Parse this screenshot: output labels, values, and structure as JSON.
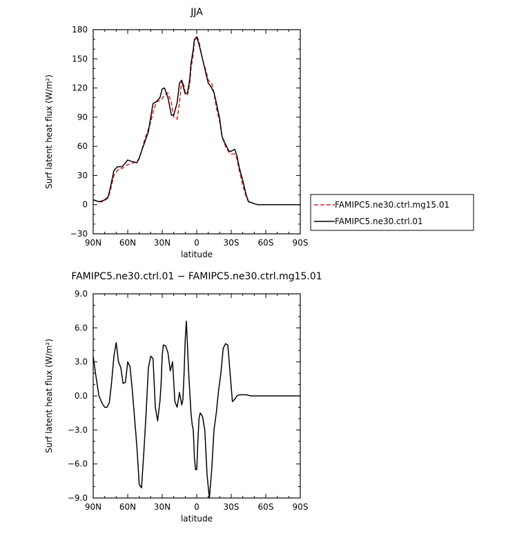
{
  "colors": {
    "ctrl": "#000000",
    "mg15": "#e41a1c"
  },
  "legend": {
    "entries": [
      {
        "label": "FAMIPC5.ne30.ctrl.mg15.01",
        "color": "#e41a1c",
        "dash": true
      },
      {
        "label": "FAMIPC5.ne30.ctrl.01",
        "color": "#000000",
        "dash": false
      }
    ]
  },
  "chart_data": [
    {
      "type": "line",
      "title": "JJA",
      "xlabel": "latitude",
      "ylabel": "Surf latent heat flux (W/m²)",
      "xlim": [
        -90,
        90
      ],
      "ylim": [
        -30,
        180
      ],
      "xticks": [
        -90,
        -60,
        -30,
        0,
        30,
        60,
        90
      ],
      "xtick_labels": [
        "90N",
        "60N",
        "30N",
        "0",
        "30S",
        "60S",
        "90S"
      ],
      "yticks": [
        -30,
        0,
        30,
        60,
        90,
        120,
        150,
        180
      ],
      "ytick_labels": [
        "−30",
        "0",
        "30",
        "60",
        "90",
        "120",
        "150",
        "180"
      ],
      "grid": false,
      "legend_placement": "outside-right",
      "series": [
        {
          "name": "FAMIPC5.ne30.ctrl.mg15.01",
          "color": "#e41a1c",
          "dash": true,
          "x": [
            -90,
            -85,
            -82,
            -80,
            -77,
            -75,
            -72,
            -69,
            -67,
            -65,
            -62,
            -60,
            -58,
            -55,
            -52,
            -50,
            -48,
            -45,
            -42,
            -40,
            -38,
            -35,
            -32,
            -30,
            -28,
            -25,
            -22,
            -20,
            -17,
            -15,
            -13,
            -11,
            -10,
            -8,
            -6,
            -5,
            -3,
            -2,
            0,
            2,
            4,
            6,
            8,
            10,
            12,
            13,
            15,
            17,
            20,
            22,
            25,
            28,
            30,
            33,
            35,
            37,
            40,
            43,
            45,
            48,
            50,
            53,
            55,
            58,
            60,
            62,
            65,
            67,
            70,
            73,
            75,
            78,
            80,
            83,
            85,
            90
          ],
          "y": [
            5,
            3,
            3,
            4,
            7,
            15,
            30,
            35,
            37,
            37,
            40,
            41,
            42,
            43,
            45,
            47,
            55,
            68,
            78,
            85,
            95,
            106,
            107,
            109,
            113,
            115,
            105,
            90,
            88,
            105,
            128,
            122,
            115,
            113,
            125,
            140,
            155,
            168,
            174,
            168,
            155,
            145,
            138,
            128,
            126,
            125,
            115,
            100,
            85,
            70,
            60,
            54,
            52,
            52,
            47,
            35,
            20,
            8,
            3,
            2,
            1,
            0,
            0,
            0,
            0,
            0,
            0,
            0,
            0,
            0,
            0,
            0,
            0,
            0,
            0,
            0
          ]
        },
        {
          "name": "FAMIPC5.ne30.ctrl.01",
          "color": "#000000",
          "dash": false,
          "x": [
            -90,
            -85,
            -82,
            -80,
            -77,
            -75,
            -72,
            -69,
            -67,
            -65,
            -62,
            -60,
            -58,
            -55,
            -52,
            -50,
            -48,
            -45,
            -42,
            -40,
            -38,
            -35,
            -32,
            -30,
            -28,
            -25,
            -22,
            -20,
            -17,
            -15,
            -13,
            -11,
            -10,
            -8,
            -6,
            -5,
            -3,
            -2,
            0,
            2,
            4,
            6,
            8,
            10,
            12,
            13,
            15,
            17,
            20,
            22,
            25,
            28,
            30,
            33,
            35,
            37,
            40,
            43,
            45,
            48,
            50,
            53,
            55,
            58,
            60,
            62,
            65,
            67,
            70,
            73,
            75,
            78,
            80,
            83,
            85,
            90
          ],
          "y": [
            5,
            3,
            4,
            5,
            8,
            18,
            35,
            39,
            39,
            39,
            43,
            46,
            45,
            44,
            43,
            48,
            55,
            65,
            75,
            90,
            104,
            106,
            110,
            119,
            120,
            110,
            92,
            92,
            105,
            125,
            128,
            118,
            114,
            115,
            130,
            145,
            160,
            170,
            172,
            165,
            155,
            145,
            135,
            125,
            122,
            120,
            115,
            105,
            88,
            70,
            62,
            55,
            55,
            57,
            50,
            38,
            25,
            10,
            3,
            2,
            1,
            0,
            0,
            0,
            0,
            0,
            0,
            0,
            0,
            0,
            0,
            0,
            0,
            0,
            0,
            0
          ]
        }
      ]
    },
    {
      "type": "line",
      "title": "FAMIPC5.ne30.ctrl.01  −  FAMIPC5.ne30.ctrl.mg15.01",
      "xlabel": "latitude",
      "ylabel": "Surf latent heat flux (W/m²)",
      "xlim": [
        -90,
        90
      ],
      "ylim": [
        -9,
        9
      ],
      "xticks": [
        -90,
        -60,
        -30,
        0,
        30,
        60,
        90
      ],
      "xtick_labels": [
        "90N",
        "60N",
        "30N",
        "0",
        "30S",
        "60S",
        "90S"
      ],
      "yticks": [
        -9,
        -6,
        -3,
        0,
        3,
        6,
        9
      ],
      "ytick_labels": [
        "−9.0",
        "−6.0",
        "−3.0",
        "0.0",
        "3.0",
        "6.0",
        "9.0"
      ],
      "grid": false,
      "series": [
        {
          "name": "",
          "color": "#000000",
          "dash": false,
          "x": [
            -90,
            -88,
            -85,
            -82,
            -80,
            -78,
            -76,
            -74,
            -72,
            -70,
            -68,
            -66,
            -64,
            -62,
            -60,
            -58,
            -56,
            -54,
            -52,
            -50,
            -48,
            -46,
            -44,
            -42,
            -40,
            -38,
            -36,
            -34,
            -32,
            -31,
            -30,
            -29,
            -27,
            -25,
            -23,
            -21,
            -19,
            -17,
            -15,
            -13,
            -12,
            -11,
            -10,
            -9,
            -7,
            -5,
            -4,
            -3,
            -2,
            -1,
            0,
            1,
            2,
            3,
            5,
            7,
            9,
            11,
            13,
            15,
            17,
            19,
            21,
            23,
            25,
            27,
            29,
            31,
            33,
            35,
            37,
            39,
            41,
            43,
            45,
            47,
            50,
            52,
            55,
            58,
            60,
            62,
            64,
            66,
            68,
            70,
            72,
            74,
            76,
            78,
            80,
            85,
            90
          ],
          "y": [
            3.5,
            2,
            0,
            -0.7,
            -1,
            -1,
            -0.6,
            1.2,
            3.5,
            4.7,
            3,
            2.5,
            1.1,
            1.2,
            3,
            2.6,
            0.5,
            -2,
            -4.5,
            -7.8,
            -8.1,
            -5,
            -1.5,
            2.5,
            3.5,
            3.3,
            -1,
            -2.2,
            -0.5,
            1,
            3.6,
            4.5,
            4.4,
            3.8,
            2.2,
            3,
            -0.5,
            -1,
            0.3,
            -0.8,
            -0.3,
            2,
            5,
            6.6,
            2,
            -1.5,
            -2.5,
            -3,
            -5.5,
            -6.5,
            -6.5,
            -4,
            -2,
            -1.5,
            -1.8,
            -3,
            -7,
            -9,
            -6.5,
            -3,
            -1.5,
            0.5,
            2,
            4.2,
            4.6,
            4.5,
            2,
            -0.5,
            -0.3,
            0,
            0.1,
            0.1,
            0.1,
            0.1,
            0.05,
            0,
            0,
            0,
            0,
            0,
            0,
            0,
            0,
            0,
            0,
            0,
            0,
            0,
            0,
            0,
            0,
            0,
            0
          ],
          "note": "visual trace"
        }
      ]
    }
  ]
}
